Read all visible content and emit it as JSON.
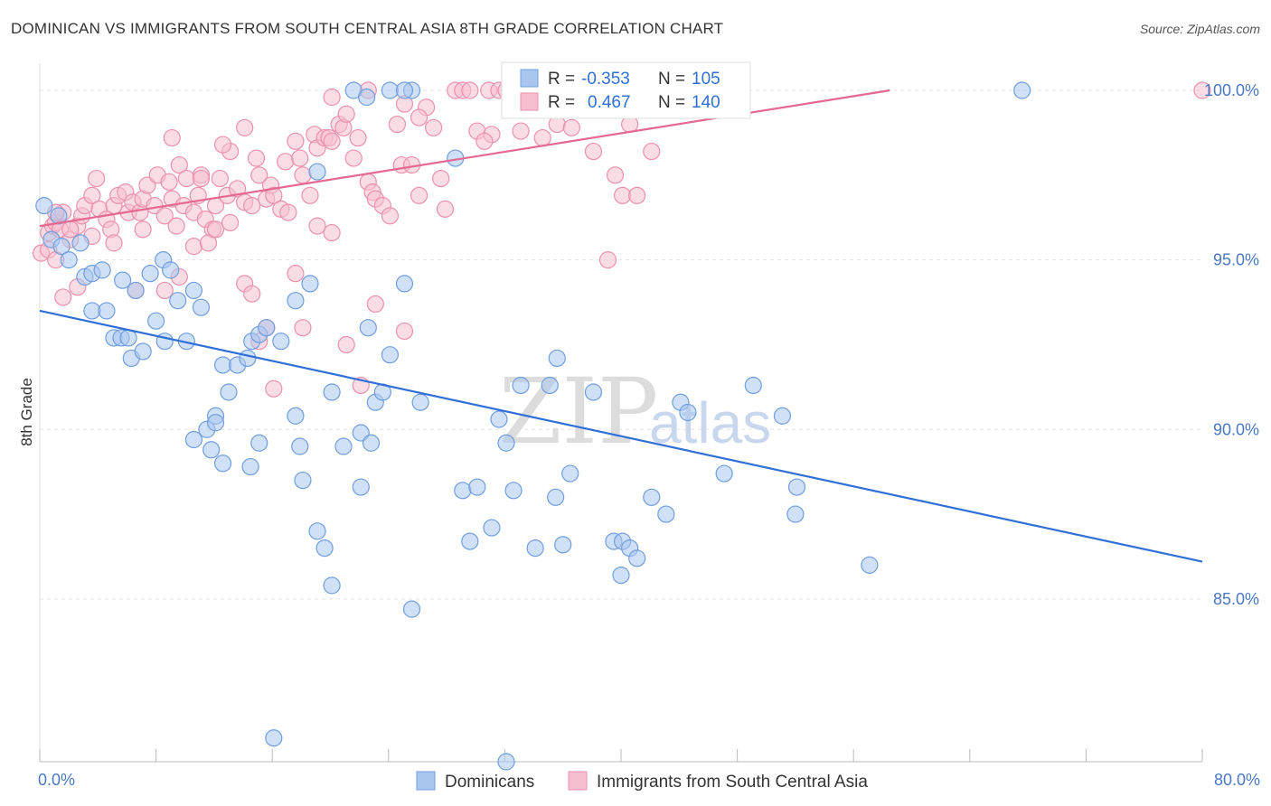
{
  "title": "DOMINICAN VS IMMIGRANTS FROM SOUTH CENTRAL ASIA 8TH GRADE CORRELATION CHART",
  "source": "Source: ZipAtlas.com",
  "watermark": {
    "zip": "ZIP",
    "atlas": "atlas"
  },
  "colors": {
    "blue_fill": "#a9c6ee",
    "blue_stroke": "#6f9ede",
    "blue_line": "#2f6fd6",
    "pink_fill": "#f6bfd0",
    "pink_stroke": "#ec90ad",
    "pink_line": "#e4688f",
    "tick_text": "#4a78c2",
    "grid": "#e4e4e4"
  },
  "chart_data": {
    "type": "scatter",
    "xlabel": "",
    "ylabel": "8th Grade",
    "xlim": [
      0,
      80
    ],
    "ylim": [
      80.2,
      100.8
    ],
    "x_tick_labels": [
      {
        "value": 0,
        "label": "0.0%"
      },
      {
        "value": 80,
        "label": "80.0%"
      }
    ],
    "y_tick_labels": [
      {
        "value": 100,
        "label": "100.0%"
      },
      {
        "value": 95,
        "label": "95.0%"
      },
      {
        "value": 90,
        "label": "90.0%"
      },
      {
        "value": 85,
        "label": "85.0%"
      }
    ],
    "x_minor_ticks": [
      0,
      8,
      16,
      24,
      32,
      40,
      48,
      56,
      64,
      72,
      80
    ],
    "grid": true,
    "legend": {
      "placement": "top-center",
      "rows": [
        {
          "r_label": "R =",
          "r_value": "-0.353",
          "n_label": "N =",
          "n_value": "105"
        },
        {
          "r_label": "R =",
          "r_value": "0.467",
          "n_label": "N =",
          "n_value": "140"
        }
      ]
    },
    "series": [
      {
        "name": "Dominicans",
        "trend": {
          "x": [
            0,
            80
          ],
          "y": [
            93.5,
            86.1
          ]
        },
        "points": [
          [
            0.3,
            96.6
          ],
          [
            1.3,
            96.3
          ],
          [
            0.8,
            95.6
          ],
          [
            1.5,
            95.4
          ],
          [
            2.0,
            95.0
          ],
          [
            2.8,
            95.5
          ],
          [
            3.1,
            94.5
          ],
          [
            3.6,
            94.6
          ],
          [
            4.3,
            94.7
          ],
          [
            5.7,
            94.4
          ],
          [
            6.6,
            94.1
          ],
          [
            7.6,
            94.6
          ],
          [
            8.5,
            95.0
          ],
          [
            9.0,
            94.7
          ],
          [
            3.6,
            93.5
          ],
          [
            4.6,
            93.5
          ],
          [
            5.1,
            92.7
          ],
          [
            5.6,
            92.7
          ],
          [
            6.1,
            92.7
          ],
          [
            6.3,
            92.1
          ],
          [
            7.1,
            92.3
          ],
          [
            8.0,
            93.2
          ],
          [
            8.6,
            92.6
          ],
          [
            9.5,
            93.8
          ],
          [
            10.1,
            92.6
          ],
          [
            10.6,
            94.1
          ],
          [
            11.1,
            93.6
          ],
          [
            12.6,
            91.9
          ],
          [
            13.0,
            91.1
          ],
          [
            13.6,
            91.9
          ],
          [
            14.6,
            92.6
          ],
          [
            15.1,
            92.8
          ],
          [
            14.3,
            92.1
          ],
          [
            15.6,
            93.0
          ],
          [
            16.6,
            92.6
          ],
          [
            17.6,
            93.8
          ],
          [
            18.6,
            94.3
          ],
          [
            11.5,
            90.0
          ],
          [
            12.1,
            90.4
          ],
          [
            12.1,
            90.2
          ],
          [
            10.6,
            89.7
          ],
          [
            11.8,
            89.4
          ],
          [
            12.6,
            89.0
          ],
          [
            14.5,
            88.9
          ],
          [
            15.1,
            89.6
          ],
          [
            17.6,
            90.4
          ],
          [
            18.1,
            88.5
          ],
          [
            17.9,
            89.5
          ],
          [
            20.1,
            91.1
          ],
          [
            22.1,
            89.9
          ],
          [
            20.9,
            89.5
          ],
          [
            22.6,
            93.0
          ],
          [
            23.1,
            90.8
          ],
          [
            23.6,
            91.1
          ],
          [
            24.1,
            92.2
          ],
          [
            25.1,
            94.3
          ],
          [
            22.1,
            88.3
          ],
          [
            22.8,
            89.6
          ],
          [
            26.2,
            90.8
          ],
          [
            29.1,
            88.2
          ],
          [
            29.6,
            86.7
          ],
          [
            30.1,
            88.3
          ],
          [
            32.6,
            88.2
          ],
          [
            31.1,
            87.1
          ],
          [
            31.6,
            90.3
          ],
          [
            32.1,
            89.6
          ],
          [
            33.1,
            91.3
          ],
          [
            35.1,
            91.3
          ],
          [
            35.6,
            92.1
          ],
          [
            34.1,
            86.5
          ],
          [
            35.5,
            88.0
          ],
          [
            36.0,
            86.6
          ],
          [
            38.1,
            91.1
          ],
          [
            36.5,
            88.7
          ],
          [
            39.5,
            86.7
          ],
          [
            40.1,
            86.7
          ],
          [
            40.6,
            86.5
          ],
          [
            41.1,
            86.2
          ],
          [
            40.0,
            85.7
          ],
          [
            42.1,
            88.0
          ],
          [
            43.1,
            87.5
          ],
          [
            44.1,
            90.8
          ],
          [
            44.6,
            90.5
          ],
          [
            47.1,
            88.7
          ],
          [
            49.1,
            91.3
          ],
          [
            51.1,
            90.4
          ],
          [
            52.1,
            88.3
          ],
          [
            52.0,
            87.5
          ],
          [
            57.1,
            86.0
          ],
          [
            19.1,
            87.0
          ],
          [
            19.6,
            86.5
          ],
          [
            20.1,
            85.4
          ],
          [
            25.6,
            84.7
          ],
          [
            16.1,
            80.9
          ],
          [
            32.1,
            80.2
          ],
          [
            21.6,
            100.0
          ],
          [
            24.1,
            100.0
          ],
          [
            25.6,
            100.0
          ],
          [
            25.1,
            100.0
          ],
          [
            28.6,
            98.0
          ],
          [
            32.6,
            100.0
          ],
          [
            67.6,
            100.0
          ],
          [
            19.1,
            97.6
          ],
          [
            22.5,
            99.8
          ]
        ]
      },
      {
        "name": "Immigrants from South Central Asia",
        "trend": {
          "x": [
            0,
            58.5
          ],
          "y": [
            96.0,
            100.0
          ]
        },
        "points": [
          [
            0.1,
            95.2
          ],
          [
            0.6,
            95.8
          ],
          [
            0.9,
            96.0
          ],
          [
            1.1,
            96.1
          ],
          [
            1.4,
            95.9
          ],
          [
            1.6,
            96.4
          ],
          [
            2.1,
            95.6
          ],
          [
            2.6,
            96.0
          ],
          [
            2.9,
            96.3
          ],
          [
            3.1,
            96.6
          ],
          [
            3.6,
            96.9
          ],
          [
            3.9,
            97.4
          ],
          [
            4.1,
            96.5
          ],
          [
            4.6,
            96.2
          ],
          [
            4.9,
            95.9
          ],
          [
            5.1,
            96.6
          ],
          [
            5.4,
            96.9
          ],
          [
            5.9,
            97.0
          ],
          [
            6.1,
            96.4
          ],
          [
            6.4,
            96.7
          ],
          [
            6.9,
            96.4
          ],
          [
            7.1,
            96.8
          ],
          [
            7.4,
            97.2
          ],
          [
            7.9,
            96.6
          ],
          [
            8.1,
            97.5
          ],
          [
            8.6,
            96.3
          ],
          [
            8.9,
            97.3
          ],
          [
            9.1,
            96.8
          ],
          [
            9.4,
            96.0
          ],
          [
            9.6,
            97.8
          ],
          [
            9.9,
            96.6
          ],
          [
            10.1,
            97.4
          ],
          [
            10.6,
            96.4
          ],
          [
            10.9,
            96.9
          ],
          [
            11.1,
            97.5
          ],
          [
            11.4,
            96.2
          ],
          [
            11.9,
            95.9
          ],
          [
            12.1,
            96.6
          ],
          [
            12.4,
            97.4
          ],
          [
            12.9,
            96.9
          ],
          [
            13.1,
            98.2
          ],
          [
            13.6,
            97.1
          ],
          [
            14.1,
            96.7
          ],
          [
            14.6,
            96.6
          ],
          [
            14.9,
            98.0
          ],
          [
            15.1,
            97.5
          ],
          [
            15.6,
            96.8
          ],
          [
            15.9,
            97.2
          ],
          [
            16.1,
            96.9
          ],
          [
            16.6,
            96.5
          ],
          [
            16.9,
            97.9
          ],
          [
            17.1,
            96.4
          ],
          [
            17.6,
            98.5
          ],
          [
            17.9,
            98.0
          ],
          [
            18.1,
            97.5
          ],
          [
            18.6,
            96.9
          ],
          [
            18.9,
            98.7
          ],
          [
            19.1,
            98.3
          ],
          [
            19.6,
            98.6
          ],
          [
            19.9,
            98.6
          ],
          [
            20.1,
            98.5
          ],
          [
            20.6,
            99.0
          ],
          [
            20.9,
            98.9
          ],
          [
            21.1,
            99.3
          ],
          [
            21.6,
            98.0
          ],
          [
            21.9,
            98.6
          ],
          [
            22.6,
            97.3
          ],
          [
            22.9,
            97.0
          ],
          [
            23.1,
            96.8
          ],
          [
            23.6,
            96.6
          ],
          [
            24.1,
            96.3
          ],
          [
            24.6,
            99.0
          ],
          [
            24.9,
            97.8
          ],
          [
            25.1,
            99.6
          ],
          [
            25.6,
            97.8
          ],
          [
            26.1,
            96.9
          ],
          [
            26.6,
            99.5
          ],
          [
            27.1,
            98.9
          ],
          [
            27.6,
            97.4
          ],
          [
            27.9,
            96.5
          ],
          [
            28.6,
            100.0
          ],
          [
            29.1,
            100.0
          ],
          [
            29.6,
            100.0
          ],
          [
            30.1,
            98.8
          ],
          [
            30.9,
            100.0
          ],
          [
            31.1,
            98.7
          ],
          [
            31.6,
            100.0
          ],
          [
            32.1,
            100.0
          ],
          [
            33.1,
            98.8
          ],
          [
            33.6,
            100.0
          ],
          [
            34.1,
            100.0
          ],
          [
            34.6,
            98.6
          ],
          [
            35.1,
            99.5
          ],
          [
            35.6,
            99.0
          ],
          [
            36.1,
            100.0
          ],
          [
            36.6,
            98.9
          ],
          [
            37.1,
            100.0
          ],
          [
            38.1,
            98.2
          ],
          [
            39.1,
            99.6
          ],
          [
            39.6,
            97.5
          ],
          [
            40.1,
            96.9
          ],
          [
            40.6,
            99.0
          ],
          [
            41.1,
            96.9
          ],
          [
            1.1,
            96.4
          ],
          [
            2.6,
            94.2
          ],
          [
            3.6,
            95.7
          ],
          [
            5.1,
            95.5
          ],
          [
            6.6,
            94.1
          ],
          [
            7.1,
            95.9
          ],
          [
            8.6,
            94.1
          ],
          [
            9.6,
            94.5
          ],
          [
            10.6,
            95.4
          ],
          [
            11.6,
            95.5
          ],
          [
            12.1,
            95.9
          ],
          [
            13.1,
            96.1
          ],
          [
            14.1,
            94.3
          ],
          [
            14.6,
            94.0
          ],
          [
            15.1,
            92.6
          ],
          [
            15.6,
            93.0
          ],
          [
            16.1,
            91.2
          ],
          [
            17.6,
            94.6
          ],
          [
            18.1,
            93.0
          ],
          [
            19.1,
            96.0
          ],
          [
            20.1,
            95.8
          ],
          [
            21.1,
            92.5
          ],
          [
            22.1,
            91.3
          ],
          [
            23.1,
            93.7
          ],
          [
            25.1,
            92.9
          ],
          [
            39.1,
            95.0
          ],
          [
            1.6,
            93.9
          ],
          [
            2.1,
            95.9
          ],
          [
            0.6,
            95.3
          ],
          [
            1.1,
            95.0
          ],
          [
            80.0,
            100.0
          ],
          [
            42.1,
            98.2
          ],
          [
            11.1,
            97.4
          ],
          [
            9.1,
            98.6
          ],
          [
            12.6,
            98.4
          ],
          [
            14.1,
            98.9
          ],
          [
            20.1,
            99.8
          ],
          [
            22.6,
            100.0
          ],
          [
            26.1,
            99.2
          ],
          [
            30.6,
            98.5
          ]
        ]
      }
    ]
  }
}
